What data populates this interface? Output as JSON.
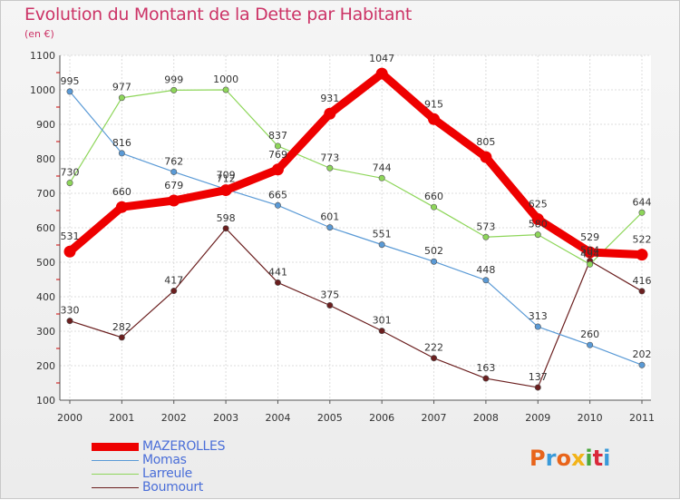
{
  "header": {
    "title": "Evolution du Montant de la Dette par Habitant",
    "subtitle": "(en €)"
  },
  "logo": {
    "text": "Proxiti",
    "colors": [
      "#e8641a",
      "#3a9ad9",
      "#e8641a",
      "#f2b319",
      "#4aa83c",
      "#d9293a",
      "#3a9ad9"
    ]
  },
  "chart_data": {
    "type": "line",
    "x": [
      "2000",
      "2001",
      "2002",
      "2003",
      "2004",
      "2005",
      "2006",
      "2007",
      "2008",
      "2009",
      "2010",
      "2011"
    ],
    "ylim": [
      100,
      1100
    ],
    "yticks": [
      "100",
      "200",
      "300",
      "400",
      "500",
      "600",
      "700",
      "800",
      "900",
      "1000",
      "1100"
    ],
    "grid": true,
    "legend": "bottom-left",
    "series": [
      {
        "name": "MAZEROLLES",
        "color": "#ee0000",
        "values": [
          531,
          660,
          679,
          709,
          769,
          931,
          1047,
          915,
          805,
          625,
          529,
          522
        ],
        "labels": [
          "531",
          "660",
          "679",
          "709",
          "769",
          "931",
          "1047",
          "915",
          "805",
          "625",
          "529",
          "522"
        ]
      },
      {
        "name": "Momas",
        "color": "#5a9ad6",
        "values": [
          995,
          816,
          762,
          712,
          665,
          601,
          551,
          502,
          448,
          313,
          260,
          202
        ],
        "labels": [
          "995",
          "816",
          "762",
          "712",
          "665",
          "601",
          "551",
          "502",
          "448",
          "313",
          "260",
          "202"
        ]
      },
      {
        "name": "Larreule",
        "color": "#8ed65a",
        "values": [
          730,
          977,
          999,
          1000,
          837,
          773,
          744,
          660,
          573,
          580,
          494,
          644
        ],
        "labels": [
          "730",
          "977",
          "999",
          "1000",
          "837",
          "773",
          "744",
          "660",
          "573",
          "580",
          "494",
          "644"
        ]
      },
      {
        "name": "Boumourt",
        "color": "#6b1f1f",
        "values": [
          330,
          282,
          417,
          598,
          441,
          375,
          301,
          222,
          163,
          137,
          504,
          416
        ],
        "labels": [
          "330",
          "282",
          "417",
          "598",
          "441",
          "375",
          "301",
          "222",
          "163",
          "137",
          "504",
          "416"
        ]
      }
    ]
  }
}
